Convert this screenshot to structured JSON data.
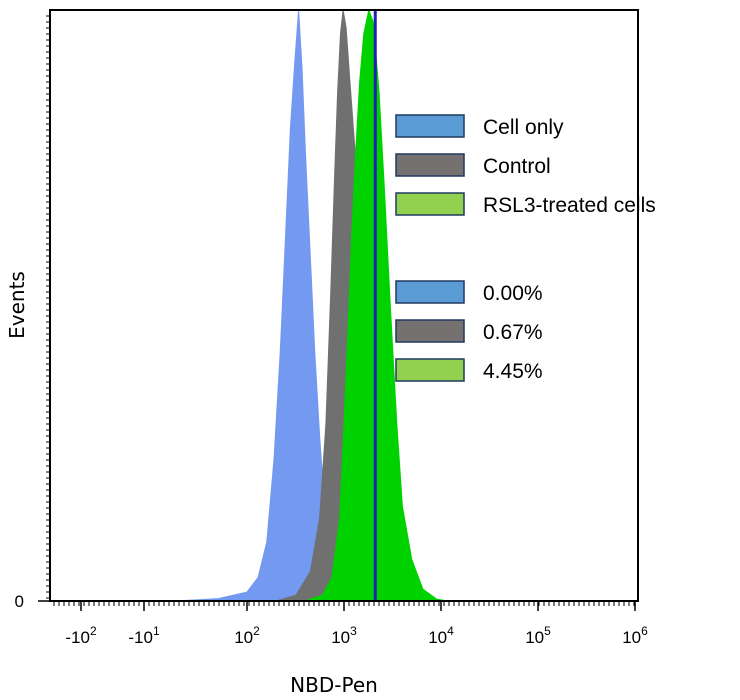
{
  "chart_data": {
    "type": "area",
    "title": "",
    "xlabel": "NBD-Pen",
    "ylabel": "Events",
    "x_scale": "biexponential",
    "x_ticks": [
      {
        "value": -100,
        "base": "-10",
        "exp": "2"
      },
      {
        "value": -10,
        "base": "-10",
        "exp": "1"
      },
      {
        "value": 100,
        "base": "10",
        "exp": "2"
      },
      {
        "value": 1000,
        "base": "10",
        "exp": "3"
      },
      {
        "value": 10000,
        "base": "10",
        "exp": "4"
      },
      {
        "value": 100000,
        "base": "10",
        "exp": "5"
      },
      {
        "value": 1000000,
        "base": "10",
        "exp": "6"
      }
    ],
    "y_ticks": [
      {
        "value": 0,
        "label": "0"
      }
    ],
    "ylim": [
      0,
      100
    ],
    "grid": false,
    "legend_position": "top-right",
    "legend_series": [
      {
        "label": "Cell only",
        "color": "#5b9bd5"
      },
      {
        "label": "Control",
        "color": "#767171"
      },
      {
        "label": "RSL3-treated cells",
        "color": "#92d050"
      }
    ],
    "legend_percent": [
      {
        "label": "0.00%",
        "color": "#5b9bd5"
      },
      {
        "label": "0.67%",
        "color": "#767171"
      },
      {
        "label": "4.45%",
        "color": "#92d050"
      }
    ],
    "gate_marker": {
      "value": 2100,
      "color": "#1f1fb4"
    },
    "series": [
      {
        "name": "Cell only",
        "color": "#7399f0",
        "points": [
          [
            0,
            0
          ],
          [
            60,
            0.4
          ],
          [
            100,
            1.5
          ],
          [
            130,
            4
          ],
          [
            160,
            10
          ],
          [
            190,
            24
          ],
          [
            220,
            42
          ],
          [
            250,
            62
          ],
          [
            280,
            80
          ],
          [
            310,
            91
          ],
          [
            340,
            100
          ],
          [
            370,
            90
          ],
          [
            400,
            76
          ],
          [
            450,
            58
          ],
          [
            500,
            42
          ],
          [
            560,
            28
          ],
          [
            630,
            16
          ],
          [
            710,
            8
          ],
          [
            800,
            3.5
          ],
          [
            900,
            1.2
          ],
          [
            1000,
            0.4
          ],
          [
            1200,
            0
          ]
        ]
      },
      {
        "name": "Control",
        "color": "#707070",
        "points": [
          [
            200,
            0
          ],
          [
            320,
            1
          ],
          [
            450,
            5
          ],
          [
            560,
            14
          ],
          [
            650,
            30
          ],
          [
            730,
            52
          ],
          [
            800,
            72
          ],
          [
            860,
            86
          ],
          [
            920,
            96
          ],
          [
            980,
            100
          ],
          [
            1050,
            97
          ],
          [
            1150,
            88
          ],
          [
            1300,
            76
          ],
          [
            1500,
            62
          ],
          [
            1700,
            50
          ],
          [
            1900,
            38
          ],
          [
            2200,
            24
          ],
          [
            2600,
            12
          ],
          [
            3000,
            5
          ],
          [
            3600,
            1.5
          ],
          [
            4500,
            0
          ]
        ]
      },
      {
        "name": "RSL3-treated cells",
        "color": "#00d200",
        "points": [
          [
            400,
            0
          ],
          [
            600,
            1
          ],
          [
            750,
            4
          ],
          [
            900,
            14
          ],
          [
            1000,
            30
          ],
          [
            1100,
            46
          ],
          [
            1200,
            62
          ],
          [
            1320,
            76
          ],
          [
            1450,
            88
          ],
          [
            1600,
            96
          ],
          [
            1800,
            100
          ],
          [
            2000,
            98
          ],
          [
            2300,
            86
          ],
          [
            2600,
            70
          ],
          [
            3000,
            50
          ],
          [
            3500,
            30
          ],
          [
            4000,
            16
          ],
          [
            5000,
            7
          ],
          [
            6500,
            2
          ],
          [
            9000,
            0.3
          ],
          [
            12000,
            0
          ]
        ]
      }
    ]
  }
}
